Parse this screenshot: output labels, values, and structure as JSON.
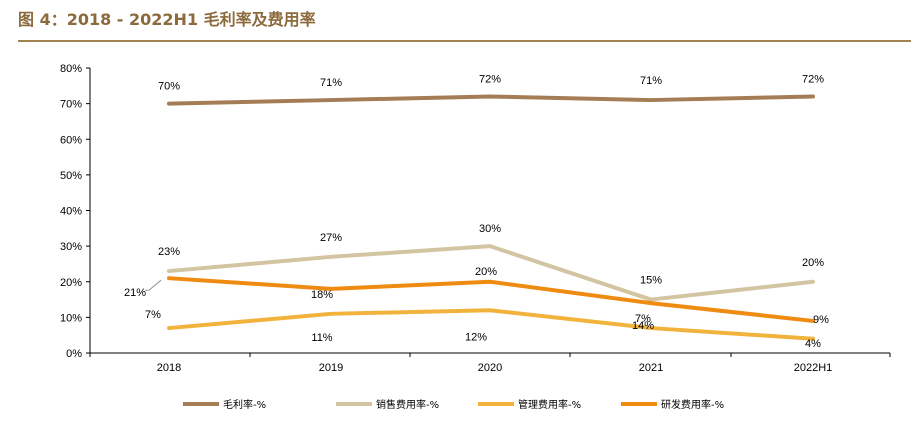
{
  "title": "图 4：2018 - 2022H1 毛利率及费用率",
  "colors": {
    "gross_margin": "#a47d56",
    "sales": "#d3c4a2",
    "admin": "#f2b33d",
    "rd": "#ee8b10",
    "title": "#8b6a3c",
    "rule": "#a2824f"
  },
  "chart_data": {
    "type": "line",
    "title": "",
    "categories": [
      "2018",
      "2019",
      "2020",
      "2021",
      "2022H1"
    ],
    "y_ticks": [
      "0%",
      "10%",
      "20%",
      "30%",
      "40%",
      "50%",
      "60%",
      "70%",
      "80%"
    ],
    "ylim": [
      0,
      80
    ],
    "grid": false,
    "legend_position": "bottom",
    "series": [
      {
        "key": "gross_margin",
        "name": "毛利率-%",
        "values": [
          70,
          71,
          72,
          71,
          72
        ],
        "labels": [
          "70%",
          "71%",
          "72%",
          "71%",
          "72%"
        ]
      },
      {
        "key": "sales",
        "name": "销售费用率-%",
        "values": [
          23,
          27,
          30,
          15,
          20
        ],
        "labels": [
          "23%",
          "27%",
          "30%",
          "15%",
          "20%"
        ]
      },
      {
        "key": "admin",
        "name": "管理费用率-%",
        "values": [
          7,
          11,
          12,
          7,
          4
        ],
        "labels": [
          "7%",
          "11%",
          "12%",
          "7%",
          "4%"
        ]
      },
      {
        "key": "rd",
        "name": "研发费用率-%",
        "values": [
          21,
          18,
          20,
          14,
          9
        ],
        "labels": [
          "21%",
          "18%",
          "20%",
          "14%",
          "9%"
        ]
      }
    ]
  }
}
